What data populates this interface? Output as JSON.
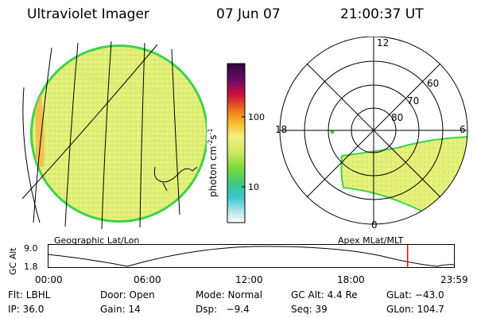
{
  "header": {
    "title": "Ultraviolet Imager",
    "date": "07 Jun 07",
    "time": "21:00:37 UT"
  },
  "colorbar": {
    "unit": "photon cm",
    "unit_exp1": "-2",
    "unit_s": "s",
    "unit_exp2": "-1",
    "ticks": [
      "100",
      "10"
    ],
    "scale": "log"
  },
  "left_panel": {
    "caption": "Geographic Lat/Lon"
  },
  "polar_plot": {
    "caption": "Apex MLat/MLT",
    "mlt_labels": [
      "12",
      "18",
      "6",
      "0"
    ],
    "lat_labels": [
      "60",
      "70",
      "80"
    ]
  },
  "altitude_plot": {
    "ylabel": "GC Alt",
    "ytick_top": "9.0",
    "ytick_bottom": "1.8",
    "xticks": [
      "00:00",
      "06:00",
      "12:00",
      "18:00",
      "23:59"
    ],
    "current_time_marker_frac": 0.886
  },
  "info": {
    "filter": "Flt: LBHL",
    "door": "Door: Open",
    "mode": "Mode: Normal",
    "gc_alt": "GC Alt: 4.4 Re",
    "glat": "GLat: −43.0",
    "ip": "IP: 36.0",
    "gain": "Gain: 14",
    "dsp": "Dsp:   −9.4",
    "seq": "Seq: 39",
    "glon": "GLon: 104.7"
  },
  "colors": {
    "image_main": "#e4f07a",
    "image_alt": "#ccea6c",
    "edge": "#3ed24a",
    "marker": "#ff0000"
  }
}
